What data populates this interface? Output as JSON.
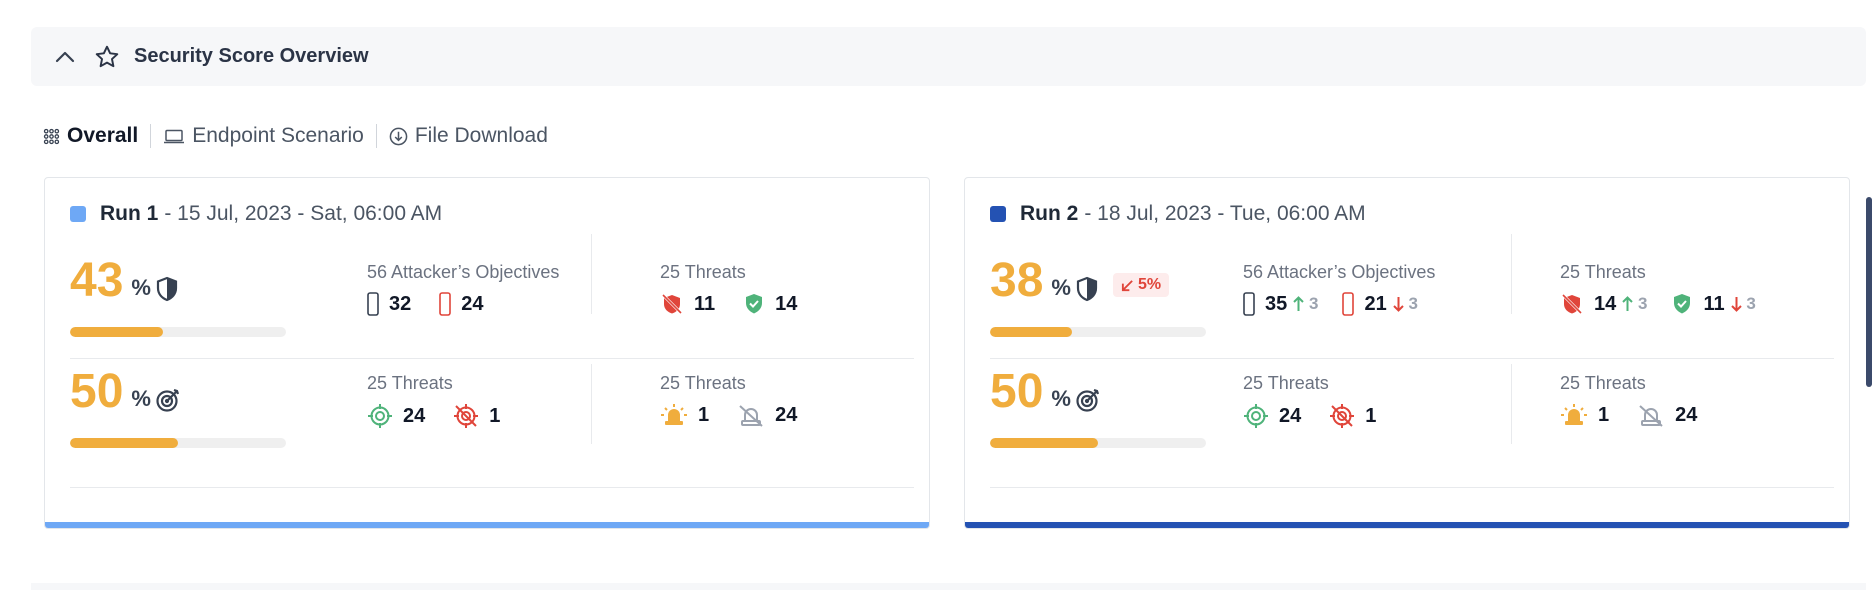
{
  "section": {
    "title": "Security Score Overview"
  },
  "tabs": [
    {
      "label": "Overall"
    },
    {
      "label": "Endpoint Scenario"
    },
    {
      "label": "File Download"
    }
  ],
  "runs": [
    {
      "name": "Run 1",
      "meta": "- 15 Jul, 2023 - Sat, 06:00 AM",
      "color": "#6ea8f5",
      "prevention": {
        "score": "43",
        "unit": "%",
        "progress": 43
      },
      "objectives": {
        "label": "56 Attacker’s Objectives",
        "passed": "32",
        "failed": "24"
      },
      "threats_a": {
        "label": "25 Threats",
        "blocked": "11",
        "protected": "14"
      },
      "detection": {
        "score": "50",
        "unit": "%",
        "progress": 50
      },
      "threats_b": {
        "label": "25 Threats",
        "detected": "24",
        "missed": "1"
      },
      "threats_c": {
        "label": "25 Threats",
        "alerted": "1",
        "not_alerted": "24"
      }
    },
    {
      "name": "Run 2",
      "meta": "- 18 Jul, 2023 - Tue, 06:00 AM",
      "color": "#2452b3",
      "prevention": {
        "score": "38",
        "unit": "%",
        "progress": 38,
        "delta": "5%"
      },
      "objectives": {
        "label": "56 Attacker’s Objectives",
        "passed": "35",
        "passed_change": "3",
        "failed": "21",
        "failed_change": "3"
      },
      "threats_a": {
        "label": "25 Threats",
        "blocked": "14",
        "blocked_change": "3",
        "protected": "11",
        "protected_change": "3"
      },
      "detection": {
        "score": "50",
        "unit": "%",
        "progress": 50
      },
      "threats_b": {
        "label": "25 Threats",
        "detected": "24",
        "missed": "1"
      },
      "threats_c": {
        "label": "25 Threats",
        "alerted": "1",
        "not_alerted": "24"
      }
    }
  ],
  "colors": {
    "accent": "#f0ad3d",
    "danger": "#e0453a",
    "success": "#4fb37a",
    "warning": "#f0ad3d"
  }
}
